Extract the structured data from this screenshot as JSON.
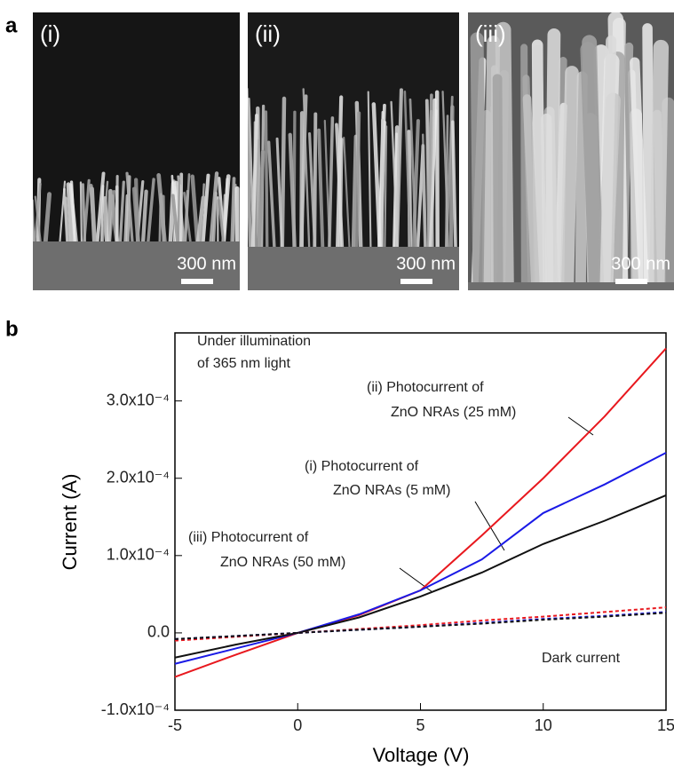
{
  "panel_labels": [
    "a",
    "b"
  ],
  "images": [
    {
      "label": "(i)",
      "scale_bar": "300 nm"
    },
    {
      "label": "(ii)",
      "scale_bar": "300 nm"
    },
    {
      "label": "(iii)",
      "scale_bar": "300 nm"
    }
  ],
  "chart_data": {
    "type": "line",
    "x_label": "Voltage (V)",
    "y_label": "Current (A)",
    "x": [
      -5,
      -2.5,
      0,
      2.5,
      5,
      7.5,
      10,
      12.5,
      15
    ],
    "series": [
      {
        "color": "#e8181e",
        "style": "solid",
        "values": [
          -5.7e-05,
          -2.8e-05,
          0,
          2.3e-05,
          5.5e-05,
          0.000126,
          0.0002,
          0.00028,
          0.000368
        ]
      },
      {
        "color": "#1a1ae6",
        "style": "solid",
        "values": [
          -4e-05,
          -2e-05,
          0,
          2.4e-05,
          5.5e-05,
          9.5e-05,
          0.000155,
          0.000192,
          0.000233
        ]
      },
      {
        "color": "#111111",
        "style": "solid",
        "values": [
          -3.2e-05,
          -1.5e-05,
          0,
          2e-05,
          4.7e-05,
          7.8e-05,
          0.000115,
          0.000145,
          0.000178
        ]
      },
      {
        "color": "#e8181e",
        "style": "dashed",
        "values": [
          -1e-05,
          -5e-06,
          0,
          5e-06,
          1e-05,
          1.6e-05,
          2.1e-05,
          2.7e-05,
          3.3e-05
        ]
      },
      {
        "color": "#1a1ae6",
        "style": "dashed",
        "values": [
          -8e-06,
          -4e-06,
          0,
          4e-06,
          8e-06,
          1.3e-05,
          1.8e-05,
          2.2e-05,
          2.7e-05
        ]
      },
      {
        "color": "#111111",
        "style": "dashed",
        "values": [
          -8e-06,
          -4e-06,
          0,
          4e-06,
          8e-06,
          1.2e-05,
          1.7e-05,
          2.1e-05,
          2.6e-05
        ]
      }
    ],
    "xlim": [
      -5,
      15
    ],
    "xticks": [
      -5,
      0,
      5,
      10,
      15
    ],
    "ylim": [
      -0.0001,
      0.000388
    ],
    "yticks": [
      {
        "value": -0.0001,
        "label": "-1.0x10⁻⁴"
      },
      {
        "value": 0,
        "label": "0.0"
      },
      {
        "value": 0.0001,
        "label": "1.0x10⁻⁴"
      },
      {
        "value": 0.0002,
        "label": "2.0x10⁻⁴"
      },
      {
        "value": 0.0003,
        "label": "3.0x10⁻⁴"
      }
    ],
    "annotations": [
      {
        "lines": [
          "Under illumination",
          "of 365 nm light"
        ]
      },
      {
        "lines": [
          "(ii) Photocurrent of",
          "ZnO NRAs (25 mM)"
        ]
      },
      {
        "lines": [
          "(i) Photocurrent of",
          "ZnO NRAs (5 mM)"
        ]
      },
      {
        "lines": [
          "(iii) Photocurrent of",
          "ZnO NRAs (50 mM)"
        ]
      },
      {
        "lines": [
          "Dark current"
        ]
      }
    ]
  }
}
